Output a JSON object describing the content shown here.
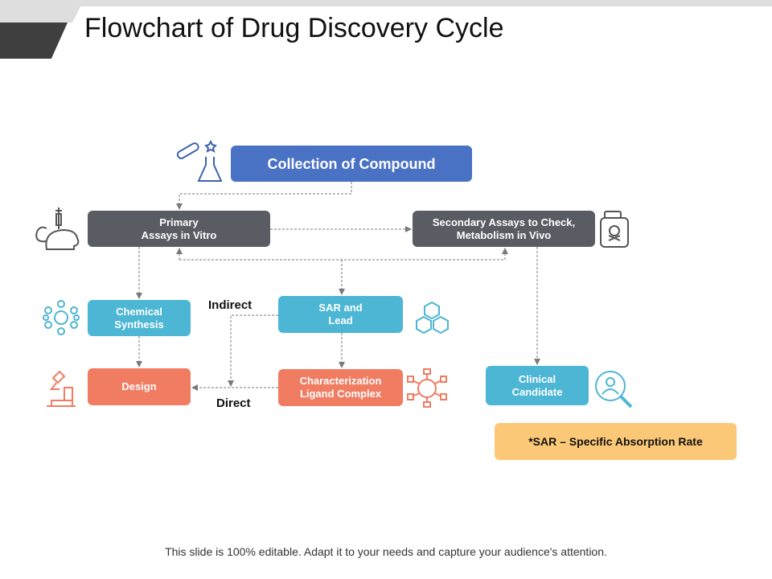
{
  "title": "Flowchart of Drug Discovery Cycle",
  "colors": {
    "blue": "#4a72c4",
    "gray": "#595d63",
    "cyan": "#4db6d4",
    "coral": "#f07c62",
    "yellow": "#fbc877",
    "connector": "#7a7a7a"
  },
  "nodes": {
    "collection": "Collection of Compound",
    "primary": "Primary\nAssays  in Vitro",
    "secondary": "Secondary Assays to Check,\nMetabolism in Vivo",
    "chemical": "Chemical\nSynthesis",
    "sar": "SAR and\nLead",
    "design": "Design",
    "characterization": "Characterization\nLigand Complex",
    "clinical": "Clinical\nCandidate"
  },
  "labels": {
    "indirect": "Indirect",
    "direct": "Direct"
  },
  "note": "*SAR – Specific Absorption Rate",
  "footer": "This slide is 100% editable.  Adapt it to your needs and capture your audience's attention.",
  "icons": [
    "test-tube-flask-icon",
    "mouse-syringe-icon",
    "poison-bottle-icon",
    "molecule-icon",
    "hexagons-icon",
    "microscope-icon",
    "ligand-icon",
    "search-person-icon"
  ]
}
